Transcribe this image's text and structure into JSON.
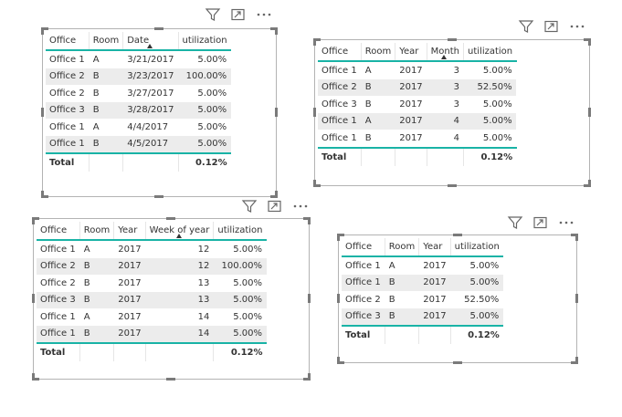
{
  "icons": {
    "filter": "filter-icon",
    "focus": "focus-mode-icon",
    "more": "more-options-icon"
  },
  "colors": {
    "accent": "#19b3a6",
    "alt_row": "#ececec",
    "frame": "#b3b3b3"
  },
  "visual1": {
    "headers": [
      "Office",
      "Room",
      "Date",
      "utilization"
    ],
    "rows": [
      [
        "Office 1",
        "A",
        "3/21/2017",
        "5.00%"
      ],
      [
        "Office 2",
        "B",
        "3/23/2017",
        "100.00%"
      ],
      [
        "Office 2",
        "B",
        "3/27/2017",
        "5.00%"
      ],
      [
        "Office 3",
        "B",
        "3/28/2017",
        "5.00%"
      ],
      [
        "Office 1",
        "A",
        "4/4/2017",
        "5.00%"
      ],
      [
        "Office 1",
        "B",
        "4/5/2017",
        "5.00%"
      ]
    ],
    "total_label": "Total",
    "total_value": "0.12%"
  },
  "visual2": {
    "headers": [
      "Office",
      "Room",
      "Year",
      "Month",
      "utilization"
    ],
    "rows": [
      [
        "Office 1",
        "A",
        "2017",
        "3",
        "5.00%"
      ],
      [
        "Office 2",
        "B",
        "2017",
        "3",
        "52.50%"
      ],
      [
        "Office 3",
        "B",
        "2017",
        "3",
        "5.00%"
      ],
      [
        "Office 1",
        "A",
        "2017",
        "4",
        "5.00%"
      ],
      [
        "Office 1",
        "B",
        "2017",
        "4",
        "5.00%"
      ]
    ],
    "total_label": "Total",
    "total_value": "0.12%"
  },
  "visual3": {
    "headers": [
      "Office",
      "Room",
      "Year",
      "Week of year",
      "utilization"
    ],
    "rows": [
      [
        "Office 1",
        "A",
        "2017",
        "12",
        "5.00%"
      ],
      [
        "Office 2",
        "B",
        "2017",
        "12",
        "100.00%"
      ],
      [
        "Office 2",
        "B",
        "2017",
        "13",
        "5.00%"
      ],
      [
        "Office 3",
        "B",
        "2017",
        "13",
        "5.00%"
      ],
      [
        "Office 1",
        "A",
        "2017",
        "14",
        "5.00%"
      ],
      [
        "Office 1",
        "B",
        "2017",
        "14",
        "5.00%"
      ]
    ],
    "total_label": "Total",
    "total_value": "0.12%"
  },
  "visual4": {
    "headers": [
      "Office",
      "Room",
      "Year",
      "utilization"
    ],
    "rows": [
      [
        "Office 1",
        "A",
        "2017",
        "5.00%"
      ],
      [
        "Office 1",
        "B",
        "2017",
        "5.00%"
      ],
      [
        "Office 2",
        "B",
        "2017",
        "52.50%"
      ],
      [
        "Office 3",
        "B",
        "2017",
        "5.00%"
      ]
    ],
    "total_label": "Total",
    "total_value": "0.12%"
  }
}
